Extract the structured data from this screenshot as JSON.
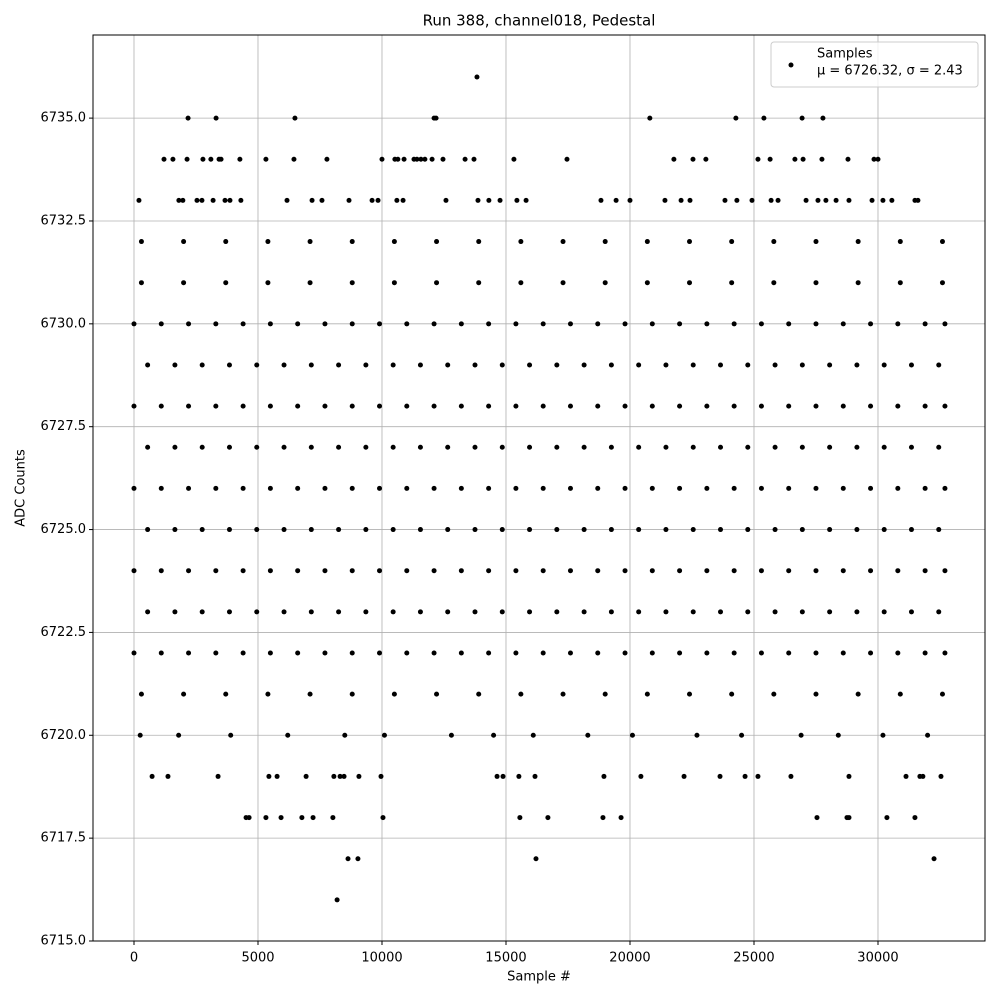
{
  "chart_data": {
    "type": "scatter",
    "title": "Run 388, channel018, Pedestal",
    "x_label": "Sample #",
    "y_label": "ADC Counts",
    "xlim": [
      -1653,
      34315
    ],
    "ylim": [
      6715,
      6737.02
    ],
    "xticks": [
      0,
      5000,
      10000,
      15000,
      20000,
      25000,
      30000
    ],
    "yticks": [
      {
        "value": 6715,
        "label": "6715.0"
      },
      {
        "value": 6717.5,
        "label": "6717.5"
      },
      {
        "value": 6720,
        "label": "6720.0"
      },
      {
        "value": 6722.5,
        "label": "6722.5"
      },
      {
        "value": 6725,
        "label": "6725.0"
      },
      {
        "value": 6727.5,
        "label": "6727.5"
      },
      {
        "value": 6730,
        "label": "6730.0"
      },
      {
        "value": 6732.5,
        "label": "6732.5"
      },
      {
        "value": 6735,
        "label": "6735.0"
      }
    ],
    "grid": true,
    "legend": "upper right",
    "legend_note": "μ = 6726.32, σ = 2.43",
    "x": [
      0,
      1100,
      2200,
      3300,
      4400,
      5500,
      6600,
      7700,
      8800,
      9900,
      11000,
      12100,
      13200,
      14300,
      15400,
      16500,
      17600,
      18700,
      19800,
      20900,
      22000,
      23100,
      24200,
      25300,
      26400,
      27500,
      28600,
      29700,
      30800,
      31900,
      32700,
      550,
      1650,
      2750,
      3850,
      4950,
      6050,
      7150,
      8250,
      9350,
      10450,
      11550,
      12650,
      13750,
      14850,
      15950,
      17050,
      18150,
      19250,
      20350,
      21450,
      22550,
      23650,
      24750,
      25850,
      26950,
      28050,
      29150,
      30250,
      31350,
      32450,
      0,
      1100,
      2200,
      3300,
      4400,
      5500,
      6600,
      7700,
      8800,
      9900,
      11000,
      12100,
      13200,
      14300,
      15400,
      16500,
      17600,
      18700,
      19800,
      20900,
      22000,
      23100,
      24200,
      25300,
      26400,
      27500,
      28600,
      29700,
      30800,
      31900,
      32700,
      550,
      1650,
      2750,
      3850,
      4950,
      6050,
      7150,
      8250,
      9350,
      10450,
      11550,
      12650,
      13750,
      14850,
      15950,
      17050,
      18150,
      19250,
      20350,
      21450,
      22550,
      23650,
      24750,
      25850,
      26950,
      28050,
      29150,
      30250,
      31350,
      32450,
      0,
      1100,
      2200,
      3300,
      4400,
      5500,
      6600,
      7700,
      8800,
      9900,
      11000,
      12100,
      13200,
      14300,
      15400,
      16500,
      17600,
      18700,
      19800,
      20900,
      22000,
      23100,
      24200,
      25300,
      26400,
      27500,
      28600,
      29700,
      30800,
      31900,
      32700,
      550,
      1650,
      2750,
      3850,
      4950,
      6050,
      7150,
      8250,
      9350,
      10450,
      11550,
      12650,
      13750,
      14850,
      15950,
      17050,
      18150,
      19250,
      20350,
      21450,
      22550,
      23650,
      24750,
      25850,
      26950,
      28050,
      29150,
      30250,
      31350,
      32450,
      0,
      1100,
      2200,
      3300,
      4400,
      5500,
      6600,
      7700,
      8800,
      9900,
      11000,
      12100,
      13200,
      14300,
      15400,
      16500,
      17600,
      18700,
      19800,
      20900,
      22000,
      23100,
      24200,
      25300,
      26400,
      27500,
      28600,
      29700,
      30800,
      31900,
      32700,
      550,
      1650,
      2750,
      3850,
      4950,
      6050,
      7150,
      8250,
      9350,
      10450,
      11550,
      12650,
      13750,
      14850,
      15950,
      17050,
      18150,
      19250,
      20350,
      21450,
      22550,
      23650,
      24750,
      25850,
      26950,
      28050,
      29150,
      30250,
      31350,
      32450,
      0,
      1100,
      2200,
      3300,
      4400,
      5500,
      6600,
      7700,
      8800,
      9900,
      11000,
      12100,
      13200,
      14300,
      15400,
      16500,
      17600,
      18700,
      19800,
      20900,
      22000,
      23100,
      24200,
      25300,
      26400,
      27500,
      28600,
      29700,
      30800,
      31900,
      32700,
      300,
      2000,
      3700,
      5400,
      7100,
      8800,
      10500,
      12200,
      13900,
      15600,
      17300,
      19000,
      20700,
      22400,
      24100,
      25800,
      27500,
      29200,
      30900,
      32600,
      300,
      2000,
      3700,
      5400,
      7100,
      8800,
      10500,
      12200,
      13900,
      15600,
      17300,
      19000,
      20700,
      22400,
      24100,
      25800,
      27500,
      29200,
      30900,
      32600,
      300,
      2000,
      3700,
      5400,
      7100,
      8800,
      10500,
      12200,
      13900,
      15600,
      17300,
      19000,
      20700,
      22400,
      24100,
      25800,
      27500,
      29200,
      30900,
      32600,
      250,
      1800,
      3900,
      6200,
      8500,
      10100,
      12800,
      14500,
      16100,
      18300,
      20100,
      22700,
      24500,
      26900,
      28400,
      30200,
      32000,
      13830,
      2180,
      3310,
      6490,
      12100,
      12180,
      20800,
      24270,
      25400,
      26940,
      27780,
      1210,
      1570,
      2140,
      2780,
      3100,
      3430,
      3510,
      4270,
      5320,
      6450,
      7780,
      10000,
      10520,
      10640,
      10890,
      11290,
      11410,
      11570,
      11730,
      12020,
      12460,
      13350,
      13710,
      15320,
      17460,
      21770,
      22540,
      23060,
      25160,
      25650,
      26650,
      26980,
      27740,
      28790,
      29840,
      30000,
      200,
      1810,
      1970,
      2540,
      2740,
      3190,
      3670,
      3870,
      4310,
      6170,
      7180,
      7580,
      8670,
      9600,
      9840,
      10600,
      10850,
      12580,
      13870,
      14310,
      14760,
      15440,
      15810,
      18830,
      19440,
      20000,
      21410,
      22060,
      22420,
      23830,
      24310,
      24920,
      25690,
      25970,
      27100,
      27580,
      27900,
      28310,
      28830,
      29760,
      30200,
      30560,
      31490,
      31610,
      730,
      1370,
      3390,
      5440,
      5770,
      6940,
      8060,
      8310,
      8470,
      9070,
      9960,
      14640,
      14880,
      15520,
      16170,
      18950,
      20440,
      22180,
      23630,
      24640,
      25160,
      26490,
      28830,
      31130,
      31690,
      31810,
      32540,
      4520,
      4640,
      5320,
      5930,
      6770,
      7220,
      8020,
      10040,
      15560,
      16690,
      18910,
      19640,
      27540,
      28750,
      28830,
      30360,
      31490,
      8630,
      9030,
      16210,
      32260,
      8190
    ],
    "series": [
      {
        "name": "Samples",
        "color": "#000000",
        "values": [
          6722,
          6722,
          6722,
          6722,
          6722,
          6722,
          6722,
          6722,
          6722,
          6722,
          6722,
          6722,
          6722,
          6722,
          6722,
          6722,
          6722,
          6722,
          6722,
          6722,
          6722,
          6722,
          6722,
          6722,
          6722,
          6722,
          6722,
          6722,
          6722,
          6722,
          6722,
          6723,
          6723,
          6723,
          6723,
          6723,
          6723,
          6723,
          6723,
          6723,
          6723,
          6723,
          6723,
          6723,
          6723,
          6723,
          6723,
          6723,
          6723,
          6723,
          6723,
          6723,
          6723,
          6723,
          6723,
          6723,
          6723,
          6723,
          6723,
          6723,
          6723,
          6724,
          6724,
          6724,
          6724,
          6724,
          6724,
          6724,
          6724,
          6724,
          6724,
          6724,
          6724,
          6724,
          6724,
          6724,
          6724,
          6724,
          6724,
          6724,
          6724,
          6724,
          6724,
          6724,
          6724,
          6724,
          6724,
          6724,
          6724,
          6724,
          6724,
          6724,
          6725,
          6725,
          6725,
          6725,
          6725,
          6725,
          6725,
          6725,
          6725,
          6725,
          6725,
          6725,
          6725,
          6725,
          6725,
          6725,
          6725,
          6725,
          6725,
          6725,
          6725,
          6725,
          6725,
          6725,
          6725,
          6725,
          6725,
          6725,
          6725,
          6725,
          6726,
          6726,
          6726,
          6726,
          6726,
          6726,
          6726,
          6726,
          6726,
          6726,
          6726,
          6726,
          6726,
          6726,
          6726,
          6726,
          6726,
          6726,
          6726,
          6726,
          6726,
          6726,
          6726,
          6726,
          6726,
          6726,
          6726,
          6726,
          6726,
          6726,
          6726,
          6727,
          6727,
          6727,
          6727,
          6727,
          6727,
          6727,
          6727,
          6727,
          6727,
          6727,
          6727,
          6727,
          6727,
          6727,
          6727,
          6727,
          6727,
          6727,
          6727,
          6727,
          6727,
          6727,
          6727,
          6727,
          6727,
          6727,
          6727,
          6727,
          6727,
          6728,
          6728,
          6728,
          6728,
          6728,
          6728,
          6728,
          6728,
          6728,
          6728,
          6728,
          6728,
          6728,
          6728,
          6728,
          6728,
          6728,
          6728,
          6728,
          6728,
          6728,
          6728,
          6728,
          6728,
          6728,
          6728,
          6728,
          6728,
          6728,
          6728,
          6728,
          6729,
          6729,
          6729,
          6729,
          6729,
          6729,
          6729,
          6729,
          6729,
          6729,
          6729,
          6729,
          6729,
          6729,
          6729,
          6729,
          6729,
          6729,
          6729,
          6729,
          6729,
          6729,
          6729,
          6729,
          6729,
          6729,
          6729,
          6729,
          6729,
          6729,
          6730,
          6730,
          6730,
          6730,
          6730,
          6730,
          6730,
          6730,
          6730,
          6730,
          6730,
          6730,
          6730,
          6730,
          6730,
          6730,
          6730,
          6730,
          6730,
          6730,
          6730,
          6730,
          6730,
          6730,
          6730,
          6730,
          6730,
          6730,
          6730,
          6730,
          6730,
          6721,
          6721,
          6721,
          6721,
          6721,
          6721,
          6721,
          6721,
          6721,
          6721,
          6721,
          6721,
          6721,
          6721,
          6721,
          6721,
          6721,
          6721,
          6721,
          6721,
          6731,
          6731,
          6731,
          6731,
          6731,
          6731,
          6731,
          6731,
          6731,
          6731,
          6731,
          6731,
          6731,
          6731,
          6731,
          6731,
          6731,
          6731,
          6731,
          6731,
          6732,
          6732,
          6732,
          6732,
          6732,
          6732,
          6732,
          6732,
          6732,
          6732,
          6732,
          6732,
          6732,
          6732,
          6732,
          6732,
          6732,
          6732,
          6732,
          6732,
          6720,
          6720,
          6720,
          6720,
          6720,
          6720,
          6720,
          6720,
          6720,
          6720,
          6720,
          6720,
          6720,
          6720,
          6720,
          6720,
          6720,
          6736,
          6735,
          6735,
          6735,
          6735,
          6735,
          6735,
          6735,
          6735,
          6735,
          6735,
          6734,
          6734,
          6734,
          6734,
          6734,
          6734,
          6734,
          6734,
          6734,
          6734,
          6734,
          6734,
          6734,
          6734,
          6734,
          6734,
          6734,
          6734,
          6734,
          6734,
          6734,
          6734,
          6734,
          6734,
          6734,
          6734,
          6734,
          6734,
          6734,
          6734,
          6734,
          6734,
          6734,
          6734,
          6734,
          6734,
          6733,
          6733,
          6733,
          6733,
          6733,
          6733,
          6733,
          6733,
          6733,
          6733,
          6733,
          6733,
          6733,
          6733,
          6733,
          6733,
          6733,
          6733,
          6733,
          6733,
          6733,
          6733,
          6733,
          6733,
          6733,
          6733,
          6733,
          6733,
          6733,
          6733,
          6733,
          6733,
          6733,
          6733,
          6733,
          6733,
          6733,
          6733,
          6733,
          6733,
          6733,
          6733,
          6733,
          6733,
          6719,
          6719,
          6719,
          6719,
          6719,
          6719,
          6719,
          6719,
          6719,
          6719,
          6719,
          6719,
          6719,
          6719,
          6719,
          6719,
          6719,
          6719,
          6719,
          6719,
          6719,
          6719,
          6719,
          6719,
          6719,
          6719,
          6719,
          6718,
          6718,
          6718,
          6718,
          6718,
          6718,
          6718,
          6718,
          6718,
          6718,
          6718,
          6718,
          6718,
          6718,
          6718,
          6718,
          6718,
          6717,
          6717,
          6717,
          6717,
          6716
        ]
      }
    ]
  }
}
